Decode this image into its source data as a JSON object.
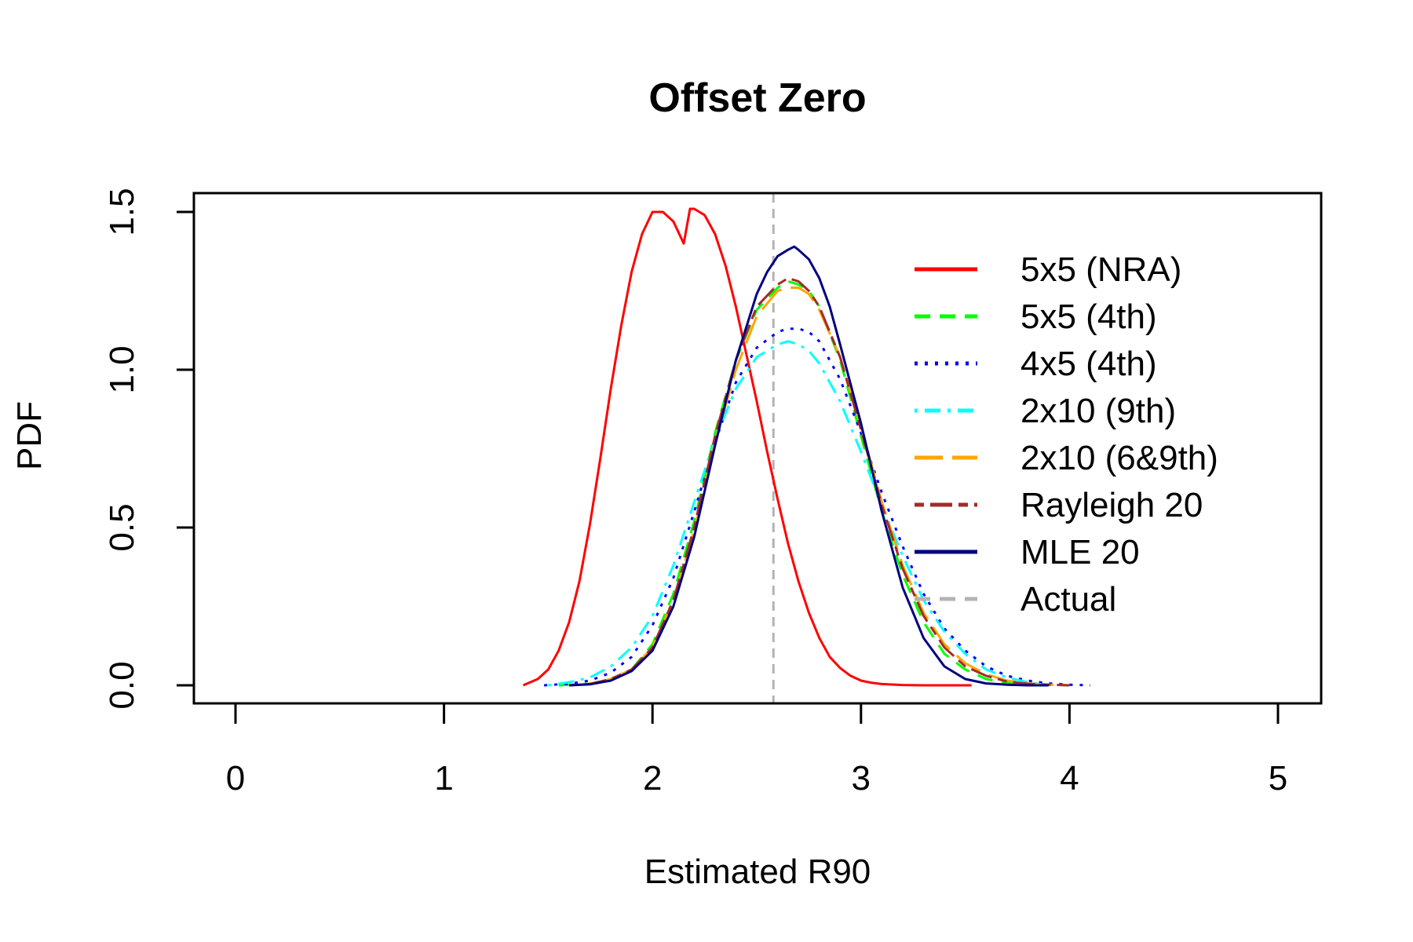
{
  "chart_data": {
    "type": "line",
    "title": "Offset Zero",
    "xlabel": "Estimated R90",
    "ylabel": "PDF",
    "xlim": [
      0,
      5
    ],
    "ylim": [
      0,
      1.5
    ],
    "x_ticks": [
      "0",
      "1",
      "2",
      "3",
      "4",
      "5"
    ],
    "y_ticks": [
      "0.0",
      "0.5",
      "1.0",
      "1.5"
    ],
    "grid": false,
    "legend_position": "top-right",
    "vline": {
      "name": "Actual",
      "x": 2.58,
      "color": "#b3b3b3",
      "dash": "dashed"
    },
    "series": [
      {
        "name": "5x5 (NRA)",
        "color": "#ff0000",
        "dash": "solid",
        "width": 3,
        "x": [
          1.38,
          1.45,
          1.5,
          1.55,
          1.6,
          1.65,
          1.7,
          1.75,
          1.8,
          1.85,
          1.9,
          1.95,
          2.0,
          2.05,
          2.1,
          2.15,
          2.18,
          2.2,
          2.25,
          2.3,
          2.35,
          2.4,
          2.45,
          2.5,
          2.55,
          2.6,
          2.65,
          2.7,
          2.75,
          2.8,
          2.85,
          2.9,
          2.95,
          3.0,
          3.05,
          3.1,
          3.2,
          3.3,
          3.53
        ],
        "y": [
          0.0,
          0.02,
          0.05,
          0.11,
          0.2,
          0.33,
          0.51,
          0.72,
          0.94,
          1.14,
          1.31,
          1.43,
          1.5,
          1.5,
          1.47,
          1.4,
          1.51,
          1.51,
          1.49,
          1.43,
          1.33,
          1.2,
          1.05,
          0.9,
          0.74,
          0.59,
          0.45,
          0.33,
          0.23,
          0.15,
          0.09,
          0.055,
          0.03,
          0.015,
          0.008,
          0.004,
          0.001,
          0.0,
          0.0
        ]
      },
      {
        "name": "5x5 (4th)",
        "color": "#00ff00",
        "dash": "dashed",
        "width": 3,
        "x": [
          1.55,
          1.7,
          1.8,
          1.9,
          2.0,
          2.1,
          2.2,
          2.3,
          2.4,
          2.5,
          2.6,
          2.65,
          2.7,
          2.75,
          2.8,
          2.9,
          3.0,
          3.1,
          3.2,
          3.3,
          3.4,
          3.5,
          3.6,
          3.7,
          3.8,
          3.9
        ],
        "y": [
          0.0,
          0.005,
          0.02,
          0.05,
          0.13,
          0.29,
          0.52,
          0.8,
          1.03,
          1.19,
          1.26,
          1.28,
          1.27,
          1.25,
          1.2,
          1.03,
          0.79,
          0.55,
          0.35,
          0.2,
          0.1,
          0.05,
          0.02,
          0.008,
          0.003,
          0.0
        ]
      },
      {
        "name": "4x5 (4th)",
        "color": "#0000ff",
        "dash": "dotted",
        "width": 3,
        "x": [
          1.48,
          1.6,
          1.7,
          1.8,
          1.9,
          2.0,
          2.1,
          2.2,
          2.3,
          2.4,
          2.5,
          2.6,
          2.65,
          2.7,
          2.75,
          2.8,
          2.9,
          3.0,
          3.1,
          3.2,
          3.3,
          3.4,
          3.5,
          3.6,
          3.7,
          3.8,
          3.9,
          4.0,
          4.1
        ],
        "y": [
          0.0,
          0.005,
          0.015,
          0.04,
          0.09,
          0.19,
          0.34,
          0.55,
          0.77,
          0.96,
          1.07,
          1.12,
          1.13,
          1.13,
          1.12,
          1.09,
          0.97,
          0.8,
          0.61,
          0.44,
          0.29,
          0.18,
          0.11,
          0.06,
          0.03,
          0.015,
          0.006,
          0.002,
          0.0
        ]
      },
      {
        "name": "2x10 (9th)",
        "color": "#00ffff",
        "dash": "dashdot",
        "width": 3,
        "x": [
          1.5,
          1.6,
          1.7,
          1.8,
          1.9,
          2.0,
          2.1,
          2.2,
          2.3,
          2.4,
          2.5,
          2.6,
          2.65,
          2.7,
          2.75,
          2.8,
          2.9,
          3.0,
          3.1,
          3.2,
          3.3,
          3.4,
          3.5,
          3.6,
          3.7,
          3.8,
          3.9
        ],
        "y": [
          0.0,
          0.01,
          0.025,
          0.06,
          0.12,
          0.22,
          0.38,
          0.58,
          0.78,
          0.94,
          1.04,
          1.08,
          1.09,
          1.08,
          1.06,
          1.02,
          0.9,
          0.74,
          0.57,
          0.41,
          0.27,
          0.17,
          0.1,
          0.05,
          0.025,
          0.01,
          0.0
        ]
      },
      {
        "name": "2x10 (6&9th)",
        "color": "#ffa500",
        "dash": "longdash",
        "width": 3,
        "x": [
          1.6,
          1.7,
          1.8,
          1.9,
          2.0,
          2.1,
          2.2,
          2.3,
          2.4,
          2.5,
          2.6,
          2.65,
          2.7,
          2.75,
          2.8,
          2.9,
          3.0,
          3.1,
          3.2,
          3.3,
          3.4,
          3.5,
          3.6,
          3.7,
          3.8,
          3.9,
          4.0
        ],
        "y": [
          0.0,
          0.005,
          0.02,
          0.05,
          0.12,
          0.27,
          0.49,
          0.77,
          1.0,
          1.17,
          1.25,
          1.26,
          1.26,
          1.24,
          1.19,
          1.04,
          0.82,
          0.58,
          0.38,
          0.23,
          0.13,
          0.07,
          0.035,
          0.015,
          0.006,
          0.002,
          0.0
        ]
      },
      {
        "name": "Rayleigh 20",
        "color": "#a52a2a",
        "dash": "twodash",
        "width": 3,
        "x": [
          1.6,
          1.7,
          1.8,
          1.9,
          2.0,
          2.1,
          2.2,
          2.3,
          2.4,
          2.5,
          2.6,
          2.65,
          2.7,
          2.75,
          2.8,
          2.9,
          3.0,
          3.1,
          3.2,
          3.3,
          3.4,
          3.5,
          3.6,
          3.7,
          3.8,
          3.9,
          4.0
        ],
        "y": [
          0.0,
          0.004,
          0.02,
          0.05,
          0.12,
          0.27,
          0.5,
          0.79,
          1.03,
          1.2,
          1.27,
          1.29,
          1.28,
          1.25,
          1.2,
          1.04,
          0.81,
          0.57,
          0.37,
          0.22,
          0.12,
          0.06,
          0.03,
          0.012,
          0.005,
          0.002,
          0.0
        ]
      },
      {
        "name": "MLE 20",
        "color": "#000080",
        "dash": "solid",
        "width": 3,
        "x": [
          1.6,
          1.7,
          1.8,
          1.9,
          2.0,
          2.1,
          2.2,
          2.3,
          2.4,
          2.5,
          2.55,
          2.6,
          2.65,
          2.68,
          2.7,
          2.75,
          2.8,
          2.85,
          2.9,
          3.0,
          3.1,
          3.2,
          3.3,
          3.4,
          3.5,
          3.6,
          3.7,
          3.8,
          3.9
        ],
        "y": [
          0.0,
          0.003,
          0.015,
          0.045,
          0.11,
          0.25,
          0.47,
          0.76,
          1.03,
          1.24,
          1.31,
          1.36,
          1.38,
          1.39,
          1.38,
          1.35,
          1.29,
          1.2,
          1.08,
          0.83,
          0.55,
          0.31,
          0.15,
          0.06,
          0.02,
          0.006,
          0.002,
          0.0,
          0.0
        ]
      }
    ]
  }
}
